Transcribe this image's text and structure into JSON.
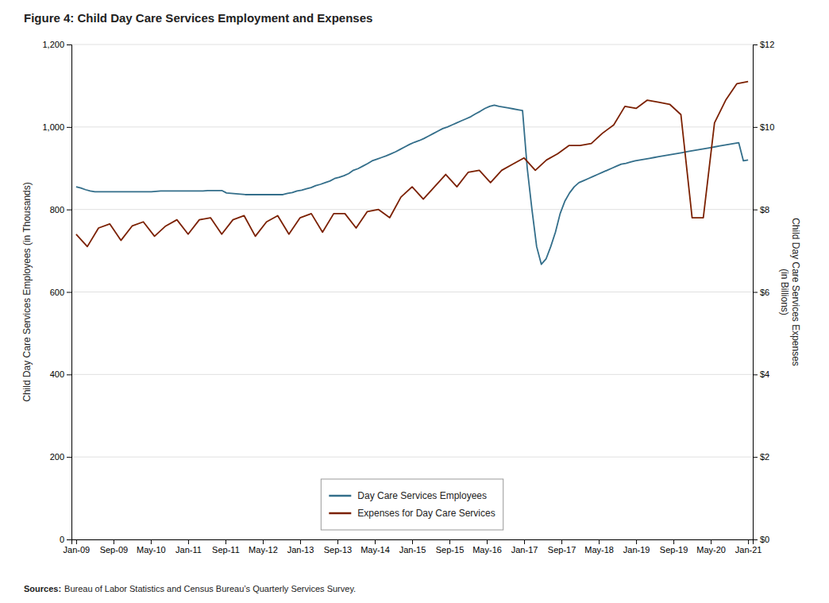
{
  "chart_data": {
    "type": "line",
    "title": "Figure 4: Child Day Care Services Employment and Expenses",
    "ylabel": "Child Day Care Services Employees (in Thousands)",
    "y2label": "Child Day Care Services Expenses\n(in Billions)",
    "annotations": [
      "Sources:",
      "Bureau of Labor Statistics and Census Bureau’s Quarterly Services Survey."
    ],
    "xlim": [
      -1,
      145
    ],
    "xticks": [
      {
        "value": 0,
        "label": "Jan-09"
      },
      {
        "value": 8,
        "label": "Sep-09"
      },
      {
        "value": 16,
        "label": "May-10"
      },
      {
        "value": 24,
        "label": "Jan-11"
      },
      {
        "value": 32,
        "label": "Sep-11"
      },
      {
        "value": 40,
        "label": "May-12"
      },
      {
        "value": 48,
        "label": "Jan-13"
      },
      {
        "value": 56,
        "label": "Sep-13"
      },
      {
        "value": 64,
        "label": "May-14"
      },
      {
        "value": 72,
        "label": "Jan-15"
      },
      {
        "value": 80,
        "label": "Sep-15"
      },
      {
        "value": 88,
        "label": "May-16"
      },
      {
        "value": 96,
        "label": "Jan-17"
      },
      {
        "value": 104,
        "label": "Sep-17"
      },
      {
        "value": 112,
        "label": "May-18"
      },
      {
        "value": 120,
        "label": "Jan-19"
      },
      {
        "value": 128,
        "label": "Sep-19"
      },
      {
        "value": 136,
        "label": "May-20"
      },
      {
        "value": 144,
        "label": "Jan-21"
      }
    ],
    "ylim": [
      0,
      1200
    ],
    "yticks": [
      0,
      200,
      400,
      600,
      800,
      {
        "value": 1000,
        "label": "1,000"
      },
      {
        "value": 1200,
        "label": "1,200"
      }
    ],
    "y2lim": [
      0,
      12
    ],
    "y2ticks": [
      {
        "value": 0,
        "label": "$0"
      },
      {
        "value": 2,
        "label": "$2"
      },
      {
        "value": 4,
        "label": "$4"
      },
      {
        "value": 6,
        "label": "$6"
      },
      {
        "value": 8,
        "label": "$8"
      },
      {
        "value": 10,
        "label": "$10"
      },
      {
        "value": 12,
        "label": "$12"
      }
    ],
    "grid": true,
    "legend": "lower center",
    "series": [
      {
        "name": "Day Care Services Employees",
        "color": "#336E8A",
        "x": [
          0,
          1.007,
          2.014,
          3.021,
          4.028,
          5.035,
          6.042,
          7.049,
          8.0559,
          9.0629,
          10.0699,
          11.0769,
          12.0839,
          13.0909,
          14.0979,
          15.1049,
          16.1119,
          17.1189,
          18.1259,
          19.1329,
          20.1399,
          21.1469,
          22.1538,
          23.1608,
          24.1678,
          25.1748,
          26.1818,
          27.1888,
          28.1958,
          29.2028,
          30.2098,
          31.2168,
          32.2238,
          33.2308,
          34.2378,
          35.2448,
          36.2517,
          37.2587,
          38.2657,
          39.2727,
          40.2797,
          41.2867,
          42.2937,
          43.3007,
          44.3077,
          45.3147,
          46.3217,
          47.3287,
          48.3357,
          49.3427,
          50.3497,
          51.3566,
          52.3636,
          53.3706,
          54.3776,
          55.3846,
          56.3916,
          57.3986,
          58.4056,
          59.4126,
          60.4196,
          61.4266,
          62.4336,
          63.4406,
          64.4476,
          65.4545,
          66.4615,
          67.4685,
          68.4755,
          69.4825,
          70.4895,
          71.4965,
          72.5035,
          73.5105,
          74.5175,
          75.5245,
          76.5315,
          77.5385,
          78.5455,
          79.5524,
          80.5594,
          81.5664,
          82.5734,
          83.5804,
          84.5874,
          85.5944,
          86.6014,
          87.6084,
          88.6154,
          89.6224,
          90.6294,
          91.6364,
          92.6434,
          93.6503,
          94.6573,
          95.6643,
          96.6713,
          97.6783,
          98.6853,
          99.6923,
          100.6993,
          101.7063,
          102.7133,
          103.7203,
          104.7273,
          105.7343,
          106.7413,
          107.7483,
          108.7552,
          109.7622,
          110.7692,
          111.7762,
          112.7832,
          113.7902,
          114.7972,
          115.8042,
          116.8112,
          117.8182,
          118.8252,
          119.8322,
          120.8392,
          121.8462,
          122.8531,
          123.8601,
          124.8671,
          125.8741,
          126.8811,
          127.8881,
          128.8951,
          129.9021,
          130.9091,
          131.9161,
          132.9231,
          133.9301,
          134.9371,
          135.9441,
          136.951,
          137.958,
          138.965,
          139.972,
          140.979,
          141.986,
          142.993,
          144
        ],
        "values": [
          855,
          852,
          848,
          845,
          843,
          843,
          843,
          843,
          843,
          843,
          843,
          843,
          843,
          843,
          843,
          843,
          843,
          844,
          845,
          845,
          845,
          845,
          845,
          845,
          845,
          845,
          845,
          845,
          846,
          846,
          846,
          846,
          840,
          839,
          838,
          837,
          836,
          836,
          836,
          836,
          836,
          836,
          836,
          836,
          836,
          839,
          841,
          845,
          847,
          850,
          853,
          858,
          861,
          865,
          869,
          875,
          878,
          882,
          887,
          895,
          899,
          905,
          911,
          918,
          922,
          926,
          930,
          935,
          940,
          946,
          952,
          958,
          963,
          967,
          972,
          978,
          984,
          990,
          996,
          1000,
          1005,
          1010,
          1015,
          1020,
          1025,
          1032,
          1038,
          1045,
          1050,
          1053,
          1050,
          1048,
          1046,
          1044,
          1042,
          1040,
          900,
          800,
          710,
          667,
          680,
          710,
          745,
          790,
          820,
          840,
          855,
          865,
          870,
          875,
          880,
          885,
          890,
          895,
          900,
          905,
          910,
          912,
          915,
          918,
          920,
          922,
          924,
          926,
          928,
          930,
          932,
          934,
          936,
          938,
          940,
          942,
          944,
          946,
          948,
          950,
          952,
          954,
          956,
          958,
          960,
          962,
          918,
          920
        ]
      },
      {
        "name": "Expenses for Day Care Services",
        "color": "#7B2000",
        "axis": "y2",
        "x": [
          0,
          2.4,
          4.8,
          7.2,
          9.6,
          12,
          14.4,
          16.8,
          19.2,
          21.6,
          24,
          26.4,
          28.8,
          31.2,
          33.6,
          36,
          38.4,
          40.8,
          43.2,
          45.6,
          48,
          50.4,
          52.8,
          55.2,
          57.6,
          60,
          62.4,
          64.8,
          67.2,
          69.6,
          72,
          74.4,
          76.8,
          79.2,
          81.6,
          84,
          86.4,
          88.8,
          91.2,
          93.6,
          96,
          98.4,
          100.8,
          103.2,
          105.6,
          108,
          110.4,
          112.8,
          115.2,
          117.6,
          120,
          122.4,
          124.8,
          127.2,
          129.6,
          132,
          134.4,
          136.8,
          139.2,
          141.6,
          144
        ],
        "values": [
          7.4,
          7.1,
          7.55,
          7.65,
          7.25,
          7.6,
          7.7,
          7.35,
          7.6,
          7.75,
          7.4,
          7.75,
          7.8,
          7.4,
          7.75,
          7.85,
          7.35,
          7.7,
          7.85,
          7.4,
          7.8,
          7.9,
          7.45,
          7.9,
          7.9,
          7.55,
          7.95,
          8.0,
          7.8,
          8.3,
          8.55,
          8.25,
          8.55,
          8.85,
          8.55,
          8.9,
          8.95,
          8.65,
          8.95,
          9.1,
          9.25,
          8.95,
          9.2,
          9.35,
          9.55,
          9.55,
          9.6,
          9.85,
          10.05,
          10.5,
          10.45,
          10.65,
          10.6,
          10.55,
          10.3,
          7.8,
          7.8,
          10.1,
          10.65,
          11.05,
          11.1
        ]
      }
    ]
  }
}
